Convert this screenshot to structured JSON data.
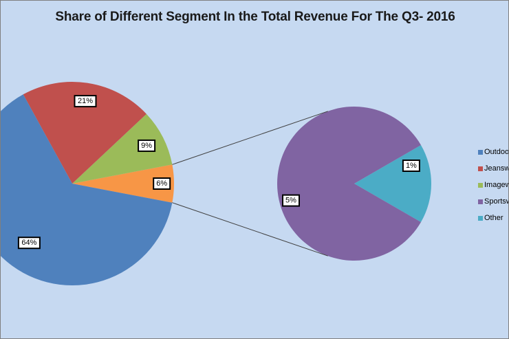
{
  "chart_data": {
    "type": "pie",
    "subtype": "pie-of-pie",
    "title": "Share of Different Segment In the Total Revenue For The Q3- 2016",
    "legend_position": "right",
    "slices": [
      {
        "name": "Outdoor",
        "value": 64,
        "label": "64%",
        "color": "#4f81bd",
        "pie": "main"
      },
      {
        "name": "Jeanswear",
        "value": 21,
        "label": "21%",
        "color": "#c0504d",
        "pie": "main"
      },
      {
        "name": "Imagewear",
        "value": 9,
        "label": "9%",
        "color": "#9bbb59",
        "pie": "main"
      },
      {
        "name": "Sportswear",
        "value": 5,
        "label": "5%",
        "color": "#8064a2",
        "pie": "secondary"
      },
      {
        "name": "Other",
        "value": 1,
        "label": "1%",
        "color": "#4bacc6",
        "pie": "secondary"
      }
    ],
    "secondary_group": {
      "label": "6%",
      "value": 6,
      "color": "#f79646"
    },
    "legend": [
      "Outdoor",
      "Jeanswear",
      "Imagewear",
      "Sportswear",
      "Other"
    ]
  }
}
